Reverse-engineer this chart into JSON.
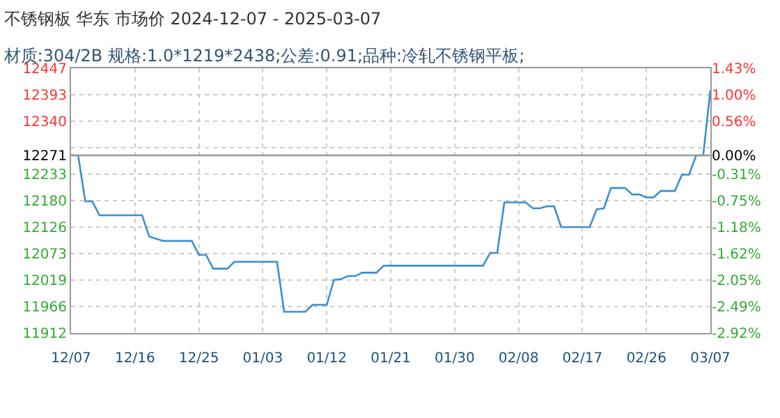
{
  "chart_data": {
    "type": "line",
    "title": "不锈钢板 华东 市场价 2024-12-07 - 2025-03-07",
    "subtitle": "材质:304/2B 规格:1.0*1219*2438;公差:0.91;品种:冷轧不锈钢平板;",
    "x": [
      "2024-12-07",
      "2024-12-08",
      "2024-12-09",
      "2024-12-10",
      "2024-12-11",
      "2024-12-17",
      "2024-12-18",
      "2024-12-20",
      "2024-12-24",
      "2024-12-25",
      "2024-12-26",
      "2024-12-27",
      "2024-12-29",
      "2024-12-30",
      "2025-01-05",
      "2025-01-06",
      "2025-01-09",
      "2025-01-10",
      "2025-01-12",
      "2025-01-13",
      "2025-01-14",
      "2025-01-15",
      "2025-01-16",
      "2025-01-17",
      "2025-01-19",
      "2025-01-20",
      "2025-02-03",
      "2025-02-04",
      "2025-02-05",
      "2025-02-06",
      "2025-02-09",
      "2025-02-10",
      "2025-02-11",
      "2025-02-12",
      "2025-02-13",
      "2025-02-14",
      "2025-02-18",
      "2025-02-19",
      "2025-02-20",
      "2025-02-21",
      "2025-02-23",
      "2025-02-24",
      "2025-02-25",
      "2025-02-26",
      "2025-02-27",
      "2025-02-28",
      "2025-03-02",
      "2025-03-03",
      "2025-03-04",
      "2025-03-05",
      "2025-03-06",
      "2025-03-07"
    ],
    "series": [
      {
        "color": "#3b8fd0",
        "values": [
          12271,
          12271,
          12178,
          12178,
          12150,
          12150,
          12107,
          12098,
          12098,
          12070,
          12070,
          12042,
          12042,
          12056,
          12056,
          11955,
          11955,
          11969,
          11969,
          12019,
          12021,
          12027,
          12027,
          12034,
          12034,
          12048,
          12048,
          12074,
          12074,
          12176,
          12176,
          12164,
          12164,
          12168,
          12168,
          12126,
          12126,
          12162,
          12164,
          12205,
          12205,
          12192,
          12192,
          12186,
          12186,
          12199,
          12199,
          12232,
          12232,
          12271,
          12271,
          12403
        ]
      }
    ],
    "xlim": [
      "2024-12-07",
      "2025-03-07"
    ],
    "xticks": [
      {
        "value": "2024-12-07",
        "label": "12/07"
      },
      {
        "value": "2024-12-16",
        "label": "12/16"
      },
      {
        "value": "2024-12-25",
        "label": "12/25"
      },
      {
        "value": "2025-01-03",
        "label": "01/03"
      },
      {
        "value": "2025-01-12",
        "label": "01/12"
      },
      {
        "value": "2025-01-21",
        "label": "01/21"
      },
      {
        "value": "2025-01-30",
        "label": "01/30"
      },
      {
        "value": "2025-02-08",
        "label": "02/08"
      },
      {
        "value": "2025-02-17",
        "label": "02/17"
      },
      {
        "value": "2025-02-26",
        "label": "02/26"
      },
      {
        "value": "2025-03-07",
        "label": "03/07"
      }
    ],
    "ylim": [
      11912,
      12447
    ],
    "yticks": [
      11912,
      11966,
      12019,
      12073,
      12126,
      12180,
      12233,
      12271,
      {
        "value": 12286.5,
        "label": null
      },
      12340,
      12393,
      12447
    ],
    "y2lim": [
      -2.92,
      1.43
    ],
    "y2ticks": [
      {
        "value": -2.92,
        "label": "-2.92%"
      },
      {
        "value": -2.49,
        "label": "-2.49%"
      },
      {
        "value": -2.05,
        "label": "-2.05%"
      },
      {
        "value": -1.62,
        "label": "-1.62%"
      },
      {
        "value": -1.18,
        "label": "-1.18%"
      },
      {
        "value": -0.75,
        "label": "-0.75%"
      },
      {
        "value": -0.31,
        "label": "-0.31%"
      },
      {
        "value": 0,
        "label": "0.00%"
      },
      {
        "value": 0.56,
        "label": "0.56%"
      },
      {
        "value": 1.0,
        "label": "1.00%"
      },
      {
        "value": 1.43,
        "label": "1.43%"
      }
    ],
    "ref_lines": [
      {
        "axis": "y",
        "value": 12271,
        "color": "#999999"
      }
    ],
    "grid": true,
    "marker": "none",
    "line_style": "solid"
  }
}
